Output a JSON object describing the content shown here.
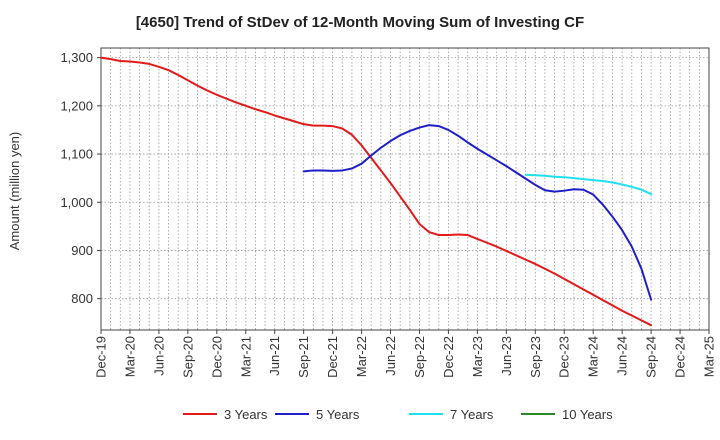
{
  "chart_data": {
    "type": "line",
    "title": "[4650]  Trend of StDev of 12-Month Moving Sum of Investing CF",
    "xlabel": "",
    "ylabel": "Amount (million yen)",
    "ylim": [
      735,
      1320
    ],
    "yticks": [
      800,
      900,
      1000,
      1100,
      1200,
      1300
    ],
    "ytick_labels": [
      "800",
      "900",
      "1,000",
      "1,100",
      "1,200",
      "1,300"
    ],
    "xticks": [
      "Dec-19",
      "Mar-20",
      "Jun-20",
      "Sep-20",
      "Dec-20",
      "Mar-21",
      "Jun-21",
      "Sep-21",
      "Dec-21",
      "Mar-22",
      "Jun-22",
      "Sep-22",
      "Dec-22",
      "Mar-23",
      "Jun-23",
      "Sep-23",
      "Dec-23",
      "Mar-24",
      "Jun-24",
      "Sep-24",
      "Dec-24",
      "Mar-25"
    ],
    "grid": true,
    "legend_position": "bottom",
    "series": [
      {
        "name": "3 Years",
        "color": "#e31a1c",
        "x": [
          "2019-12",
          "2020-01",
          "2020-02",
          "2020-03",
          "2020-04",
          "2020-05",
          "2020-06",
          "2020-07",
          "2020-08",
          "2020-09",
          "2020-10",
          "2020-11",
          "2020-12",
          "2021-01",
          "2021-02",
          "2021-03",
          "2021-04",
          "2021-05",
          "2021-06",
          "2021-07",
          "2021-08",
          "2021-09",
          "2021-10",
          "2021-11",
          "2021-12",
          "2022-01",
          "2022-02",
          "2022-03",
          "2022-04",
          "2022-05",
          "2022-06",
          "2022-07",
          "2022-08",
          "2022-09",
          "2022-10",
          "2022-11",
          "2022-12",
          "2023-01",
          "2023-02",
          "2023-03",
          "2023-04",
          "2023-05",
          "2023-06",
          "2023-07",
          "2023-08",
          "2023-09",
          "2023-10",
          "2023-11",
          "2023-12",
          "2024-01",
          "2024-02",
          "2024-03",
          "2024-04",
          "2024-05",
          "2024-06",
          "2024-07",
          "2024-08",
          "2024-09"
        ],
        "values": [
          1300,
          1297,
          1293,
          1292,
          1290,
          1287,
          1281,
          1274,
          1264,
          1253,
          1242,
          1232,
          1223,
          1215,
          1207,
          1200,
          1193,
          1187,
          1180,
          1174,
          1168,
          1162,
          1159,
          1159,
          1158,
          1153,
          1140,
          1118,
          1092,
          1066,
          1040,
          1012,
          984,
          955,
          938,
          932,
          932,
          933,
          932,
          924,
          916,
          908,
          899,
          890,
          881,
          872,
          862,
          852,
          841,
          830,
          819,
          808,
          797,
          786,
          775,
          765,
          755,
          745
        ]
      },
      {
        "name": "5 Years",
        "color": "#1f1fc8",
        "x": [
          "2021-09",
          "2021-10",
          "2021-11",
          "2021-12",
          "2022-01",
          "2022-02",
          "2022-03",
          "2022-04",
          "2022-05",
          "2022-06",
          "2022-07",
          "2022-08",
          "2022-09",
          "2022-10",
          "2022-11",
          "2022-12",
          "2023-01",
          "2023-02",
          "2023-03",
          "2023-04",
          "2023-05",
          "2023-06",
          "2023-07",
          "2023-08",
          "2023-09",
          "2023-10",
          "2023-11",
          "2023-12",
          "2024-01",
          "2024-02",
          "2024-03",
          "2024-04",
          "2024-05",
          "2024-06",
          "2024-07",
          "2024-08",
          "2024-09"
        ],
        "values": [
          1064,
          1066,
          1066,
          1065,
          1066,
          1070,
          1080,
          1097,
          1113,
          1127,
          1139,
          1148,
          1155,
          1160,
          1158,
          1150,
          1138,
          1124,
          1111,
          1099,
          1087,
          1075,
          1062,
          1049,
          1036,
          1025,
          1022,
          1024,
          1027,
          1026,
          1016,
          995,
          970,
          942,
          908,
          862,
          798
        ]
      },
      {
        "name": "7 Years",
        "color": "#1fe0f0",
        "x": [
          "2023-08",
          "2023-09",
          "2023-10",
          "2023-11",
          "2023-12",
          "2024-01",
          "2024-02",
          "2024-03",
          "2024-04",
          "2024-05",
          "2024-06",
          "2024-07",
          "2024-08",
          "2024-09"
        ],
        "values": [
          1057,
          1056,
          1055,
          1053,
          1052,
          1050,
          1048,
          1046,
          1044,
          1041,
          1037,
          1032,
          1026,
          1017
        ]
      },
      {
        "name": "10 Years",
        "color": "#2a8a2a",
        "x": [],
        "values": []
      }
    ]
  }
}
